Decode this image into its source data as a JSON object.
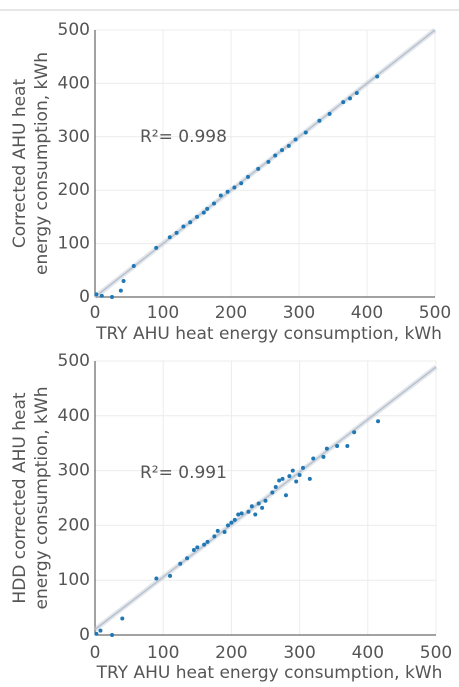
{
  "chart_data": [
    {
      "type": "scatter",
      "annotation": "R²= 0.998",
      "xlabel": "TRY AHU heat energy consumption, kWh",
      "ylabel": [
        "Corrected AHU heat",
        "energy consumption, kWh"
      ],
      "xlim": [
        0,
        500
      ],
      "ylim": [
        0,
        500
      ],
      "xticks": [
        0,
        100,
        200,
        300,
        400,
        500
      ],
      "yticks": [
        0,
        100,
        200,
        300,
        400,
        500
      ],
      "grid": true,
      "color": "#1f77b4",
      "fit_color": "#b8c2cf",
      "x": [
        2,
        10,
        25,
        38,
        42,
        57,
        90,
        110,
        120,
        130,
        140,
        150,
        160,
        165,
        175,
        185,
        195,
        205,
        215,
        225,
        240,
        255,
        265,
        275,
        285,
        295,
        310,
        330,
        345,
        365,
        375,
        385,
        415
      ],
      "y": [
        5,
        2,
        0,
        12,
        30,
        58,
        92,
        112,
        120,
        132,
        140,
        150,
        158,
        165,
        175,
        190,
        197,
        205,
        213,
        225,
        240,
        253,
        265,
        275,
        283,
        295,
        308,
        330,
        343,
        365,
        372,
        382,
        413
      ],
      "fit": {
        "x": [
          0,
          500
        ],
        "y": [
          0,
          500
        ]
      }
    },
    {
      "type": "scatter",
      "annotation": "R²= 0.991",
      "xlabel": "TRY AHU heat energy consumption, kWh",
      "ylabel": [
        "HDD corrected AHU heat",
        "energy consumption, kWh"
      ],
      "xlim": [
        0,
        500
      ],
      "ylim": [
        0,
        500
      ],
      "xticks": [
        0,
        100,
        200,
        300,
        400,
        500
      ],
      "yticks": [
        0,
        100,
        200,
        300,
        400,
        500
      ],
      "grid": true,
      "color": "#1f77b4",
      "fit_color": "#b8c2cf",
      "x": [
        2,
        8,
        25,
        40,
        90,
        110,
        125,
        135,
        145,
        150,
        160,
        165,
        175,
        180,
        190,
        195,
        200,
        205,
        210,
        215,
        225,
        230,
        235,
        240,
        245,
        250,
        260,
        265,
        270,
        275,
        280,
        285,
        290,
        295,
        300,
        305,
        315,
        320,
        335,
        340,
        355,
        370,
        380,
        415
      ],
      "y": [
        2,
        8,
        0,
        30,
        103,
        108,
        130,
        140,
        155,
        160,
        165,
        170,
        180,
        190,
        188,
        200,
        205,
        210,
        220,
        222,
        225,
        235,
        220,
        240,
        232,
        245,
        260,
        270,
        282,
        285,
        255,
        290,
        300,
        280,
        292,
        305,
        285,
        322,
        325,
        340,
        345,
        345,
        370,
        390
      ],
      "fit": {
        "x": [
          0,
          500
        ],
        "y": [
          10,
          489
        ]
      }
    }
  ]
}
